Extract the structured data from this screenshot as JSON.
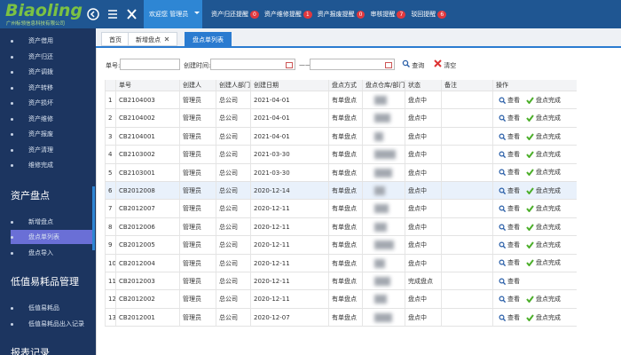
{
  "header": {
    "logo": "Biaoling",
    "company": "广州标领信息科技有限公司",
    "user": "欢迎您 管理员",
    "notices": [
      {
        "label": "资产归还提醒",
        "count": 0
      },
      {
        "label": "资产维修提醒",
        "count": 1
      },
      {
        "label": "资产报废提醒",
        "count": 0
      },
      {
        "label": "审核提醒",
        "count": 7
      },
      {
        "label": "驳回提醒",
        "count": 6
      }
    ]
  },
  "sidebar": {
    "items": [
      "资产借用",
      "资产归还",
      "资产调拨",
      "资产转移",
      "资产损坏",
      "资产维修",
      "资产报废",
      "资产清理",
      "维修完成"
    ],
    "sections": [
      {
        "title": "资产盘点",
        "items": [
          "新增盘点",
          "盘点单列表",
          "盘点导入"
        ]
      },
      {
        "title": "低值易耗品管理",
        "items": [
          "低值易耗品",
          "低值易耗品出入记录"
        ]
      },
      {
        "title": "报表记录",
        "items": []
      }
    ]
  },
  "tabs": [
    "首页",
    "新增盘点",
    "盘点单列表"
  ],
  "search": {
    "order_label": "单号:",
    "time_label": "创建时间:",
    "separator": "——",
    "query": "查询",
    "clear": "清空"
  },
  "table": {
    "columns": [
      "单号",
      "创建人",
      "创建人部门",
      "创建日期",
      "盘点方式",
      "盘点仓库/部门",
      "状态",
      "备注",
      "操作"
    ],
    "rows": [
      {
        "no": 1,
        "id": "CB2104003",
        "creator": "管理员",
        "dept": "总公司",
        "date": "2021-04-01",
        "method": "有单盘点",
        "status": "盘点中",
        "actions": [
          "查看",
          "盘点完成"
        ]
      },
      {
        "no": 2,
        "id": "CB2104002",
        "creator": "管理员",
        "dept": "总公司",
        "date": "2021-04-01",
        "method": "有单盘点",
        "status": "盘点中",
        "actions": [
          "查看",
          "盘点完成"
        ]
      },
      {
        "no": 3,
        "id": "CB2104001",
        "creator": "管理员",
        "dept": "总公司",
        "date": "2021-04-01",
        "method": "有单盘点",
        "status": "盘点中",
        "actions": [
          "查看",
          "盘点完成"
        ]
      },
      {
        "no": 4,
        "id": "CB2103002",
        "creator": "管理员",
        "dept": "总公司",
        "date": "2021-03-30",
        "method": "有单盘点",
        "status": "盘点中",
        "actions": [
          "查看",
          "盘点完成"
        ]
      },
      {
        "no": 5,
        "id": "CB2103001",
        "creator": "管理员",
        "dept": "总公司",
        "date": "2021-03-30",
        "method": "有单盘点",
        "status": "盘点中",
        "actions": [
          "查看",
          "盘点完成"
        ]
      },
      {
        "no": 6,
        "id": "CB2012008",
        "creator": "管理员",
        "dept": "总公司",
        "date": "2020-12-14",
        "method": "有单盘点",
        "status": "盘点中",
        "actions": [
          "查看",
          "盘点完成"
        ]
      },
      {
        "no": 7,
        "id": "CB2012007",
        "creator": "管理员",
        "dept": "总公司",
        "date": "2020-12-11",
        "method": "有单盘点",
        "status": "盘点中",
        "actions": [
          "查看",
          "盘点完成"
        ]
      },
      {
        "no": 8,
        "id": "CB2012006",
        "creator": "管理员",
        "dept": "总公司",
        "date": "2020-12-11",
        "method": "有单盘点",
        "status": "盘点中",
        "actions": [
          "查看",
          "盘点完成"
        ]
      },
      {
        "no": 9,
        "id": "CB2012005",
        "creator": "管理员",
        "dept": "总公司",
        "date": "2020-12-11",
        "method": "有单盘点",
        "status": "盘点中",
        "actions": [
          "查看",
          "盘点完成"
        ]
      },
      {
        "no": 10,
        "id": "CB2012004",
        "creator": "管理员",
        "dept": "总公司",
        "date": "2020-12-11",
        "method": "有单盘点",
        "status": "盘点中",
        "actions": [
          "查看",
          "盘点完成"
        ]
      },
      {
        "no": 11,
        "id": "CB2012003",
        "creator": "管理员",
        "dept": "总公司",
        "date": "2020-12-11",
        "method": "有单盘点",
        "status": "完成盘点",
        "actions": [
          "查看"
        ]
      },
      {
        "no": 12,
        "id": "CB2012002",
        "creator": "管理员",
        "dept": "总公司",
        "date": "2020-12-11",
        "method": "有单盘点",
        "status": "盘点中",
        "actions": [
          "查看",
          "盘点完成"
        ]
      },
      {
        "no": 13,
        "id": "CB2012001",
        "creator": "管理员",
        "dept": "总公司",
        "date": "2020-12-07",
        "method": "有单盘点",
        "status": "盘点中",
        "actions": [
          "查看",
          "盘点完成"
        ]
      }
    ]
  }
}
